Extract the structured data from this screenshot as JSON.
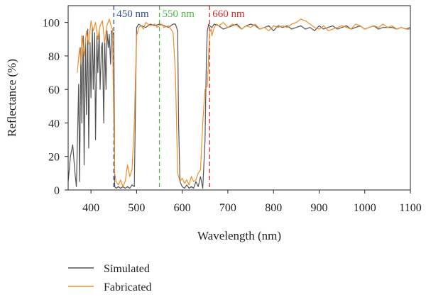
{
  "chart_data": {
    "type": "line",
    "title": "",
    "xlabel": "Wavelength (nm)",
    "ylabel": "Reflectance (%)",
    "xlim": [
      350,
      1100
    ],
    "ylim": [
      0,
      110
    ],
    "xticks": [
      "400",
      "500",
      "600",
      "700",
      "800",
      "900",
      "1000",
      "1100"
    ],
    "yticks": [
      "0",
      "20",
      "40",
      "60",
      "80",
      "100"
    ],
    "grid": false,
    "legend_position": "bottom-left",
    "vertical_lines": [
      {
        "x": 450,
        "label": "450 nm",
        "color": "#2b4d9b"
      },
      {
        "x": 550,
        "label": "550 nm",
        "color": "#4cb944"
      },
      {
        "x": 660,
        "label": "660 nm",
        "color": "#d62728"
      }
    ],
    "series": [
      {
        "name": "Simulated",
        "color": "#555555",
        "x": [
          350,
          355,
          360,
          365,
          368,
          370,
          373,
          375,
          378,
          380,
          383,
          385,
          388,
          390,
          393,
          395,
          398,
          400,
          403,
          405,
          408,
          410,
          413,
          415,
          418,
          420,
          423,
          425,
          428,
          430,
          433,
          435,
          438,
          440,
          443,
          445,
          448,
          450,
          452,
          455,
          460,
          465,
          470,
          475,
          480,
          485,
          490,
          495,
          498,
          500,
          505,
          510,
          520,
          530,
          540,
          550,
          560,
          570,
          580,
          585,
          590,
          592,
          595,
          600,
          605,
          610,
          615,
          620,
          625,
          630,
          635,
          640,
          645,
          650,
          653,
          655,
          658,
          660,
          665,
          670,
          680,
          690,
          700,
          710,
          720,
          730,
          740,
          750,
          760,
          770,
          780,
          790,
          800,
          810,
          820,
          830,
          840,
          850,
          860,
          870,
          880,
          890,
          900,
          910,
          920,
          930,
          940,
          950,
          960,
          970,
          980,
          990,
          1000,
          1010,
          1020,
          1030,
          1040,
          1050,
          1060,
          1070,
          1080,
          1090,
          1100
        ],
        "y": [
          5,
          20,
          27,
          10,
          2,
          25,
          63,
          5,
          85,
          40,
          92,
          15,
          90,
          45,
          96,
          25,
          88,
          55,
          97,
          60,
          94,
          30,
          92,
          70,
          95,
          60,
          85,
          88,
          40,
          90,
          60,
          95,
          85,
          93,
          75,
          95,
          93,
          94,
          2,
          1,
          2,
          1,
          2,
          1,
          2,
          1,
          3,
          2,
          60,
          97,
          99,
          98,
          97,
          99,
          98,
          99,
          98,
          97,
          99,
          99,
          95,
          40,
          5,
          2,
          1,
          3,
          1,
          2,
          1,
          5,
          2,
          8,
          1,
          30,
          80,
          95,
          99,
          98,
          97,
          99,
          98,
          96,
          97,
          98,
          99,
          96,
          98,
          99,
          98,
          96,
          97,
          98,
          95,
          98,
          97,
          98,
          96,
          97,
          98,
          96,
          97,
          95,
          98,
          96,
          97,
          98,
          96,
          97,
          98,
          96,
          97,
          98,
          96,
          97,
          98,
          96,
          97,
          97,
          97,
          96,
          97,
          96,
          97
        ]
      },
      {
        "name": "Fabricated",
        "color": "#f28c28",
        "x": [
          370,
          375,
          378,
          380,
          385,
          390,
          395,
          400,
          405,
          410,
          415,
          420,
          425,
          430,
          435,
          440,
          445,
          447,
          449,
          450,
          452,
          455,
          460,
          465,
          470,
          475,
          480,
          485,
          490,
          495,
          500,
          505,
          510,
          515,
          520,
          530,
          540,
          545,
          550,
          555,
          560,
          570,
          575,
          580,
          585,
          590,
          595,
          600,
          605,
          610,
          615,
          620,
          625,
          630,
          635,
          640,
          645,
          650,
          655,
          660,
          663,
          665,
          670,
          675,
          680,
          690,
          700,
          710,
          720,
          730,
          740,
          750,
          760,
          770,
          780,
          790,
          800,
          810,
          820,
          830,
          840,
          850,
          860,
          870,
          880,
          890,
          900,
          910,
          920,
          930,
          940,
          950,
          960,
          970,
          980,
          990,
          1000,
          1010,
          1020,
          1030,
          1040,
          1050,
          1060,
          1070,
          1080,
          1090,
          1100
        ],
        "y": [
          70,
          85,
          75,
          92,
          80,
          95,
          87,
          101,
          95,
          100,
          90,
          98,
          101,
          88,
          98,
          102,
          97,
          96,
          60,
          40,
          10,
          5,
          3,
          6,
          2,
          5,
          15,
          8,
          12,
          40,
          92,
          97,
          98,
          96,
          100,
          98,
          99,
          97,
          98,
          99,
          97,
          98,
          96,
          94,
          70,
          10,
          5,
          7,
          4,
          6,
          3,
          8,
          5,
          6,
          10,
          12,
          40,
          60,
          62,
          94,
          96,
          92,
          97,
          99,
          98,
          100,
          97,
          99,
          98,
          96,
          98,
          97,
          99,
          96,
          97,
          95,
          98,
          97,
          98,
          97,
          99,
          100,
          102,
          101,
          99,
          97,
          96,
          98,
          95,
          96,
          97,
          98,
          97,
          96,
          99,
          98,
          96,
          97,
          98,
          97,
          99,
          97,
          98,
          96,
          97,
          96,
          96
        ]
      }
    ]
  }
}
